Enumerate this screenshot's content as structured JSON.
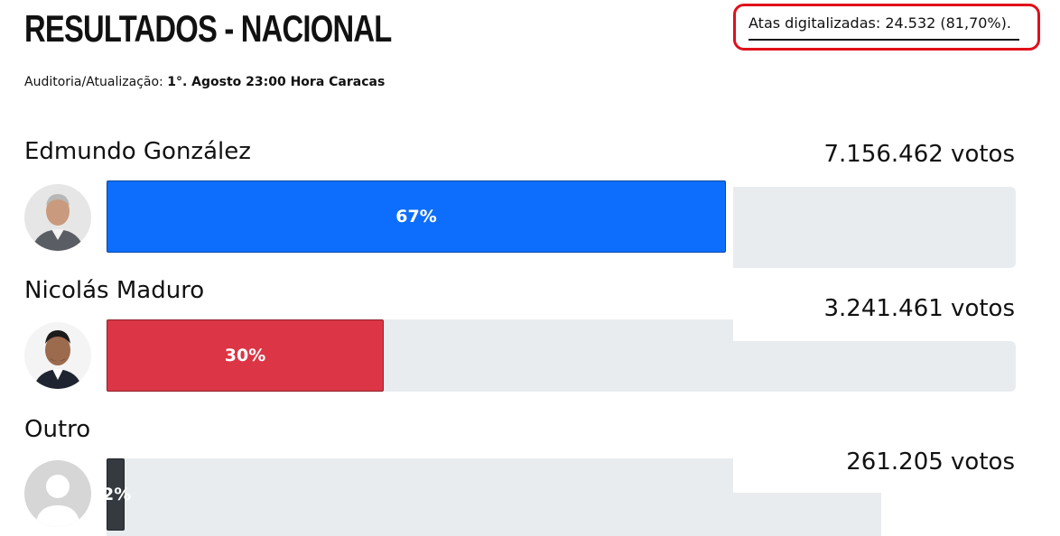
{
  "header": {
    "title": "RESULTADOS - NACIONAL",
    "atas": "Atas digitalizadas: 24.532 (81,70%).",
    "audit_label": "Auditoria/Atualização:",
    "audit_value": "1°. Agosto 23:00 Hora Caracas"
  },
  "candidates": [
    {
      "name": "Edmundo González",
      "votes": "7.156.462 votos",
      "percent_label": "67%",
      "percent": 67,
      "color": "#0d6efd",
      "avatar_icon": "person-photo-icon"
    },
    {
      "name": "Nicolás Maduro",
      "votes": "3.241.461 votos",
      "percent_label": "30%",
      "percent": 30,
      "color": "#dc3545",
      "avatar_icon": "person-photo-icon"
    },
    {
      "name": "Outro",
      "votes": "261.205 votos",
      "percent_label": "2%",
      "percent": 2,
      "color": "#343a40",
      "avatar_icon": "default-user-icon"
    }
  ]
}
